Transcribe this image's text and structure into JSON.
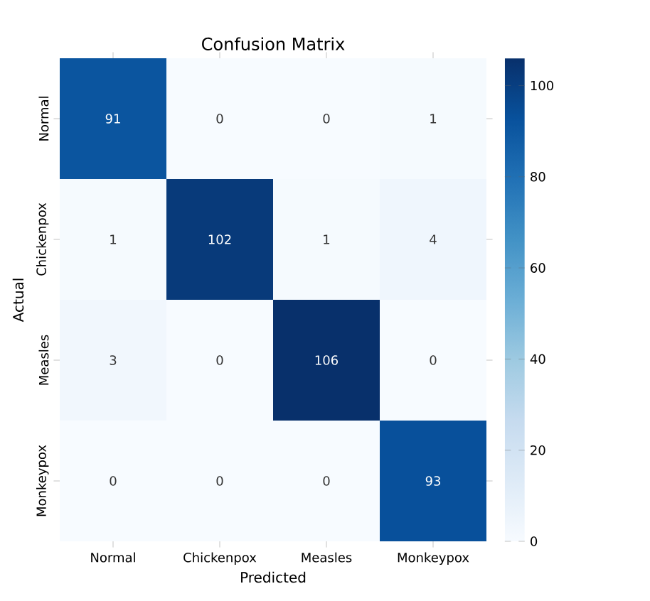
{
  "chart_data": {
    "type": "heatmap",
    "title": "Confusion Matrix",
    "xlabel": "Predicted",
    "ylabel": "Actual",
    "categories": [
      "Normal",
      "Chickenpox",
      "Measles",
      "Monkeypox"
    ],
    "y_categories": [
      "Normal",
      "Chickenpox",
      "Measles",
      "Monkeypox"
    ],
    "cells": [
      [
        91,
        0,
        0,
        1
      ],
      [
        1,
        102,
        1,
        4
      ],
      [
        3,
        0,
        106,
        0
      ],
      [
        0,
        0,
        0,
        93
      ]
    ],
    "data_labels": true,
    "clim": [
      0,
      106
    ],
    "cticks": [
      0,
      20,
      40,
      60,
      80,
      100
    ]
  }
}
